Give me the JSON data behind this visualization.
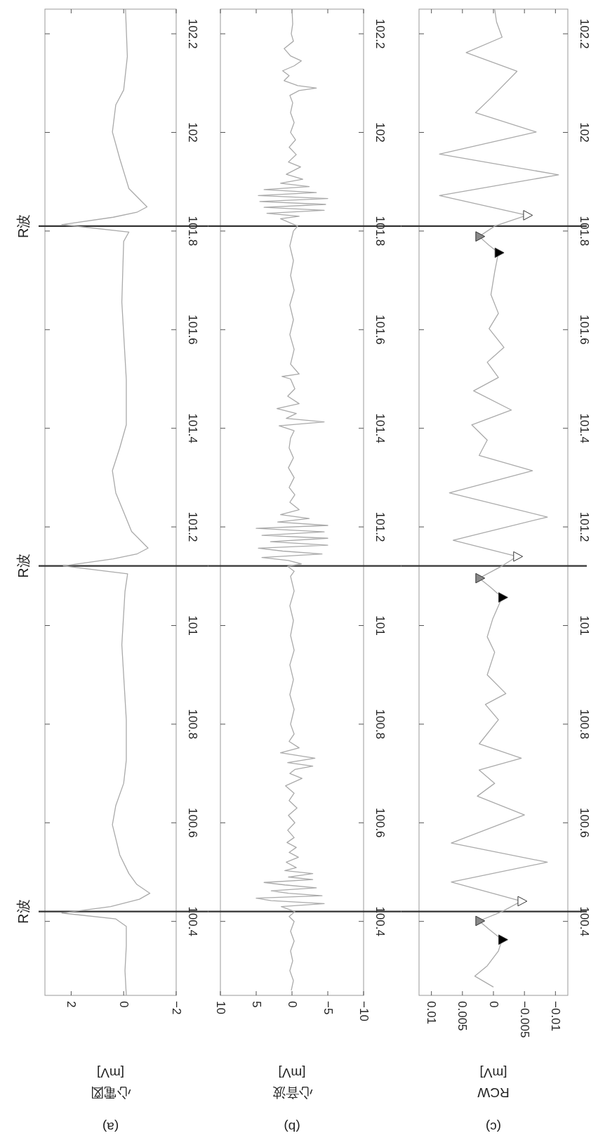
{
  "chart_data": [
    {
      "type": "line",
      "xlabel": "(a) 心電図 [mV]",
      "ylim": [
        100.25,
        102.25
      ],
      "yticks": [
        100.4,
        100.6,
        100.8,
        101,
        101.2,
        101.4,
        101.6,
        101.8,
        102,
        102.2
      ],
      "xlim": [
        3,
        -2
      ],
      "xticks": [
        {
          "value": -2,
          "label": "−2"
        },
        0,
        2
      ],
      "series": [
        {
          "color": "#aaaaaa",
          "values": [
            100.25,
            100.3,
            100.35,
            100.39,
            100.405,
            100.417,
            100.43,
            100.445,
            100.457,
            100.475,
            100.497,
            100.535,
            100.596,
            100.635,
            100.68,
            100.727,
            100.809,
            100.961,
            101.069,
            101.105,
            101.121,
            101.135,
            101.145,
            101.157,
            101.191,
            101.23,
            101.269,
            101.314,
            101.36,
            101.407,
            101.499,
            101.656,
            101.779,
            101.798,
            101.813,
            101.828,
            101.838,
            101.849,
            101.886,
            101.947,
            102.001,
            102.056,
            102.086,
            102.154,
            102.25
          ],
          "x": [
            -0.1,
            -0.05,
            -0.1,
            -0.1,
            0.3,
            2.36,
            0.5,
            -0.6,
            -1.0,
            -0.5,
            -0.2,
            0.15,
            0.43,
            0.3,
            0.0,
            -0.1,
            -0.1,
            0.07,
            -0.05,
            -0.15,
            2.3,
            0.4,
            -0.5,
            -0.93,
            -0.3,
            0.0,
            0.3,
            0.43,
            0.15,
            -0.1,
            -0.1,
            0.07,
            0.0,
            -0.2,
            2.36,
            0.4,
            -0.5,
            -0.89,
            -0.2,
            0.15,
            0.43,
            0.3,
            0.0,
            -0.14,
            -0.07
          ]
        }
      ],
      "ref_lines": [
        {
          "axis": "y",
          "value": 100.42,
          "label": "R波",
          "color": "#333333"
        },
        {
          "axis": "y",
          "value": 101.121,
          "label": "R波",
          "color": "#333333"
        },
        {
          "axis": "y",
          "value": 101.81,
          "label": "R波",
          "color": "#333333"
        }
      ]
    },
    {
      "type": "line",
      "xlabel": "(b) 心音波 [mV]",
      "ylim": [
        100.25,
        102.25
      ],
      "yticks": [
        100.4,
        100.6,
        100.8,
        101,
        101.2,
        101.4,
        101.6,
        101.8,
        102,
        102.2
      ],
      "xlim": [
        10,
        -10
      ],
      "xticks": [
        {
          "value": -10,
          "label": "−10"
        },
        {
          "value": -5,
          "label": "−5"
        },
        0,
        5,
        10
      ],
      "series": [
        {
          "color": "#aaaaaa",
          "values": [
            100.26,
            100.28,
            100.3,
            100.32,
            100.34,
            100.36,
            100.38,
            100.4,
            100.41,
            100.42,
            100.43,
            100.436,
            100.442,
            100.447,
            100.452,
            100.457,
            100.462,
            100.468,
            100.474,
            100.479,
            100.485,
            100.49,
            100.497,
            100.503,
            100.509,
            100.52,
            100.53,
            100.54,
            100.55,
            100.56,
            100.57,
            100.585,
            100.6,
            100.615,
            100.63,
            100.645,
            100.66,
            100.675,
            100.69,
            100.7,
            100.708,
            100.715,
            100.722,
            100.731,
            100.742,
            100.752,
            100.765,
            100.78,
            100.8,
            100.83,
            100.86,
            100.89,
            100.92,
            100.95,
            100.98,
            101.01,
            101.04,
            101.07,
            101.1,
            101.11,
            101.12,
            101.125,
            101.132,
            101.138,
            101.145,
            101.151,
            101.157,
            101.163,
            101.17,
            101.177,
            101.183,
            101.19,
            101.197,
            101.203,
            101.21,
            101.217,
            101.225,
            101.235,
            101.25,
            101.265,
            101.28,
            101.3,
            101.32,
            101.34,
            101.36,
            101.38,
            101.395,
            101.405,
            101.413,
            101.42,
            101.43,
            101.44,
            101.45,
            101.465,
            101.48,
            101.5,
            101.505,
            101.51,
            101.53,
            101.56,
            101.59,
            101.62,
            101.65,
            101.68,
            101.71,
            101.74,
            101.77,
            101.8,
            101.81,
            101.825,
            101.83,
            101.836,
            101.842,
            101.848,
            101.854,
            101.86,
            101.866,
            101.872,
            101.878,
            101.884,
            101.89,
            101.897,
            101.905,
            101.915,
            101.93,
            101.94,
            101.955,
            101.97,
            101.985,
            102.0,
            102.02,
            102.04,
            102.06,
            102.075,
            102.085,
            102.09,
            102.095,
            102.105,
            102.115,
            102.125,
            102.135,
            102.145,
            102.155,
            102.17,
            102.185,
            102.2,
            102.22,
            102.25
          ],
          "x": [
            0.1,
            -0.2,
            0.3,
            -0.1,
            0.2,
            -0.3,
            0.2,
            -0.3,
            0.4,
            -0.4,
            1.5,
            -4.5,
            2.9,
            5.0,
            -4.2,
            0.5,
            2.9,
            -3.4,
            1.0,
            3.9,
            -2.9,
            0.5,
            -2.9,
            1.0,
            -0.6,
            0.8,
            -0.9,
            0.4,
            -0.6,
            0.7,
            -0.3,
            0.6,
            -0.4,
            0.5,
            -0.7,
            0.4,
            -0.3,
            0.9,
            -1.4,
            0.3,
            -0.4,
            -2.9,
            0.6,
            -3.2,
            1.6,
            -1.0,
            0.4,
            -0.3,
            0.2,
            -0.3,
            0.3,
            -0.2,
            0.3,
            -0.3,
            0.2,
            -0.2,
            0.3,
            -0.3,
            0.2,
            -0.3,
            0.6,
            -1.3,
            0.5,
            4.2,
            -4.2,
            1.3,
            4.7,
            -5.0,
            3.0,
            -5.0,
            4.2,
            -4.5,
            5.0,
            -5.0,
            2.0,
            -2.4,
            1.6,
            -1.0,
            0.3,
            -0.4,
            0.4,
            -0.3,
            0.5,
            -0.2,
            0.4,
            0.2,
            -0.3,
            1.8,
            -4.5,
            0.8,
            -0.6,
            2.1,
            -1.0,
            0.6,
            -0.4,
            0.2,
            1.4,
            -1.0,
            0.2,
            -0.3,
            0.3,
            -0.2,
            0.3,
            -0.3,
            0.2,
            -0.2,
            0.3,
            -0.2,
            -0.8,
            1.6,
            -1.0,
            3.5,
            -4.5,
            3.9,
            -4.7,
            4.5,
            -5.0,
            4.7,
            -3.4,
            3.9,
            -2.4,
            1.6,
            -1.5,
            0.8,
            -1.2,
            0.5,
            -0.6,
            0.4,
            -0.5,
            0.2,
            -0.3,
            0.2,
            -0.1,
            0.3,
            -1.0,
            -3.4,
            -0.8,
            1.1,
            0.4,
            1.3,
            -0.3,
            -1.3,
            0.2,
            1.1,
            -0.2,
            0.1,
            -0.1,
            0.0
          ]
        }
      ],
      "ref_lines": [
        {
          "axis": "y",
          "value": 100.42,
          "color": "#333333"
        },
        {
          "axis": "y",
          "value": 101.121,
          "color": "#333333"
        },
        {
          "axis": "y",
          "value": 101.81,
          "color": "#333333"
        }
      ]
    },
    {
      "type": "line",
      "xlabel": "(c) RCW [mV]",
      "ylim": [
        100.25,
        102.25
      ],
      "yticks": [
        100.4,
        100.6,
        100.8,
        101,
        101.2,
        101.4,
        101.6,
        101.8,
        102,
        102.2
      ],
      "xlim": [
        0.012,
        -0.012
      ],
      "xticks": [
        {
          "value": -0.01,
          "label": "−0.01"
        },
        {
          "value": -0.005,
          "label": "−0.005"
        },
        0,
        0.005,
        0.01
      ],
      "series": [
        {
          "color": "#aaaaaa",
          "values": [
            100.267,
            100.289,
            100.31,
            100.34,
            100.363,
            100.385,
            100.401,
            100.42,
            100.441,
            100.48,
            100.52,
            100.559,
            100.616,
            100.654,
            100.68,
            100.707,
            100.731,
            100.76,
            100.809,
            100.84,
            100.862,
            100.9,
            100.946,
            100.977,
            101.014,
            101.057,
            101.078,
            101.096,
            101.121,
            101.14,
            101.173,
            101.22,
            101.269,
            101.314,
            101.345,
            101.376,
            101.407,
            101.437,
            101.476,
            101.503,
            101.534,
            101.564,
            101.602,
            101.633,
            101.671,
            101.717,
            101.756,
            101.772,
            101.789,
            101.81,
            101.832,
            101.872,
            101.914,
            101.956,
            102.001,
            102.04,
            102.07,
            102.124,
            102.162,
            102.193,
            102.224,
            102.25
          ],
          "x": [
            0,
            0.003,
            0.001,
            -0.0008,
            -0.0014,
            0.0008,
            0.0023,
            -0.0014,
            -0.0045,
            0.0068,
            -0.0087,
            0.0068,
            -0.005,
            0.0026,
            -0.0002,
            0.0023,
            -0.0045,
            0.0023,
            -0.0008,
            0.0013,
            -0.002,
            0.001,
            -0.0002,
            0.001,
            0.0001,
            -0.0014,
            0.0005,
            0.0023,
            -0.0014,
            -0.0038,
            0.0065,
            -0.0087,
            0.0071,
            -0.0063,
            0.0023,
            0.001,
            0.0035,
            -0.0029,
            0.0032,
            -0.0008,
            0.001,
            -0.0017,
            0.0007,
            -0.0008,
            0.0004,
            -0.0002,
            -0.0008,
            0.0008,
            0.0023,
            -0.0002,
            -0.0054,
            0.0087,
            -0.0105,
            0.0087,
            -0.0069,
            0.0029,
            0.0004,
            -0.0038,
            0.0044,
            -0.0014,
            -0.0005,
            -0.0002
          ]
        },
        {
          "type": "scatter",
          "marker": "triangle",
          "color": "#888888",
          "values": [
            100.401,
            101.096,
            101.789
          ],
          "x": [
            0.0023,
            0.0023,
            0.0023
          ]
        },
        {
          "type": "scatter",
          "marker": "triangle",
          "color": "#000000",
          "values": [
            100.363,
            101.057,
            101.756
          ],
          "x": [
            -0.0014,
            -0.0014,
            -0.0008
          ]
        },
        {
          "type": "scatter",
          "marker": "triangle",
          "color": "#ffffff",
          "values": [
            100.441,
            101.14,
            101.832
          ],
          "x": [
            -0.0045,
            -0.0038,
            -0.0054
          ]
        }
      ],
      "ref_lines": [
        {
          "axis": "y",
          "value": 100.42,
          "color": "#333333"
        },
        {
          "axis": "y",
          "value": 101.121,
          "color": "#333333"
        },
        {
          "axis": "y",
          "value": 101.81,
          "color": "#333333"
        }
      ]
    }
  ]
}
